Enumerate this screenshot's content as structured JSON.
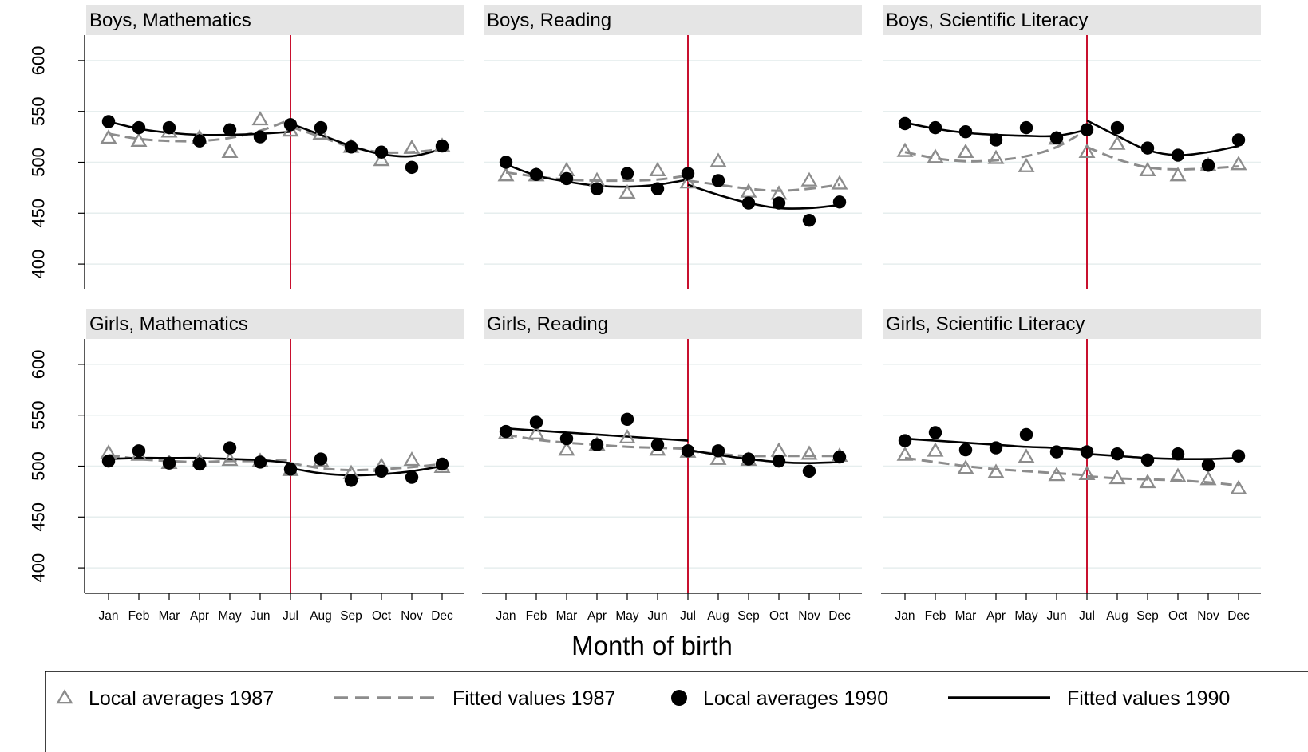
{
  "chart_data": {
    "type": "scatter",
    "xlabel": "Month of birth",
    "months": [
      "Jan",
      "Feb",
      "Mar",
      "Apr",
      "May",
      "Jun",
      "Jul",
      "Aug",
      "Sep",
      "Oct",
      "Nov",
      "Dec"
    ],
    "y_ticks": [
      400,
      450,
      500,
      550,
      600
    ],
    "ylim": [
      375,
      625
    ],
    "cutoff_month": "Jul",
    "grid": true,
    "colors": {
      "s1987": "#8c8c8c",
      "s1990": "#000000",
      "cutoff": "#c8102e",
      "strip": "#e5e5e5",
      "grid": "#e6eeee"
    },
    "legend": {
      "position": "bottom",
      "items": [
        {
          "label": "Local averages 1987",
          "marker": "triangle-icon"
        },
        {
          "label": "Fitted values 1987",
          "marker": "dashed-line"
        },
        {
          "label": "Local averages 1990",
          "marker": "filled-circle-icon"
        },
        {
          "label": "Fitted values 1990",
          "marker": "solid-line"
        }
      ]
    },
    "panels": [
      {
        "title": "Boys, Mathematics",
        "avg_1987": [
          524,
          521,
          530,
          524,
          510,
          542,
          531,
          528,
          515,
          502,
          514,
          516
        ],
        "avg_1990": [
          540,
          534,
          534,
          521,
          532,
          525,
          537,
          534,
          515,
          510,
          495,
          516
        ],
        "fit_1987_pre": [
          528,
          523,
          521,
          521,
          524,
          531,
          542
        ],
        "fit_1987_post": [
          535,
          525,
          515,
          510,
          510,
          513
        ],
        "fit_1990_pre": [
          540,
          533,
          529,
          527,
          527,
          528,
          530
        ],
        "fit_1990_post": [
          538,
          527,
          516,
          508,
          506,
          513
        ]
      },
      {
        "title": "Boys, Reading",
        "avg_1987": [
          487,
          487,
          492,
          482,
          470,
          492,
          480,
          501,
          471,
          469,
          482,
          479
        ],
        "avg_1990": [
          500,
          488,
          484,
          474,
          489,
          474,
          489,
          482,
          460,
          460,
          443,
          461
        ],
        "fit_1987_pre": [
          490,
          486,
          483,
          482,
          482,
          483,
          487
        ],
        "fit_1987_post": [
          482,
          478,
          474,
          472,
          474,
          478
        ],
        "fit_1990_pre": [
          498,
          487,
          481,
          477,
          476,
          478,
          483
        ],
        "fit_1990_post": [
          478,
          468,
          460,
          455,
          455,
          458
        ]
      },
      {
        "title": "Boys, Scientific Literacy",
        "avg_1987": [
          511,
          505,
          510,
          504,
          496,
          523,
          510,
          518,
          492,
          487,
          497,
          498
        ],
        "avg_1990": [
          538,
          534,
          530,
          522,
          534,
          524,
          532,
          534,
          514,
          507,
          497,
          522
        ],
        "fit_1987_pre": [
          510,
          504,
          501,
          502,
          506,
          515,
          532
        ],
        "fit_1987_post": [
          515,
          503,
          495,
          493,
          494,
          496
        ],
        "fit_1990_pre": [
          539,
          533,
          529,
          527,
          526,
          526,
          532
        ],
        "fit_1990_post": [
          541,
          526,
          512,
          507,
          510,
          516
        ]
      },
      {
        "title": "Girls, Mathematics",
        "avg_1987": [
          513,
          511,
          503,
          505,
          506,
          505,
          496,
          505,
          493,
          500,
          506,
          499
        ],
        "avg_1990": [
          505,
          515,
          503,
          502,
          518,
          504,
          497,
          507,
          486,
          495,
          489,
          502
        ],
        "fit_1987_pre": [
          511,
          507,
          505,
          504,
          505,
          505,
          506
        ],
        "fit_1987_post": [
          503,
          498,
          496,
          497,
          499,
          502
        ],
        "fit_1990_pre": [
          507,
          508,
          508,
          508,
          507,
          506,
          503
        ],
        "fit_1990_post": [
          498,
          493,
          491,
          492,
          495,
          500
        ]
      },
      {
        "title": "Girls, Reading",
        "avg_1987": [
          532,
          532,
          516,
          521,
          528,
          516,
          514,
          507,
          506,
          515,
          512,
          510
        ],
        "avg_1990": [
          534,
          543,
          527,
          521,
          546,
          521,
          515,
          515,
          507,
          505,
          495,
          509
        ],
        "fit_1987_pre": [
          531,
          526,
          523,
          521,
          519,
          518,
          517
        ],
        "fit_1987_post": [
          515,
          512,
          510,
          510,
          510,
          510
        ],
        "fit_1990_pre": [
          537,
          535,
          533,
          531,
          529,
          527,
          525
        ],
        "fit_1990_post": [
          516,
          511,
          507,
          504,
          503,
          504
        ]
      },
      {
        "title": "Girls, Scientific Literacy",
        "avg_1987": [
          511,
          515,
          498,
          494,
          509,
          491,
          492,
          488,
          484,
          490,
          487,
          478
        ],
        "avg_1990": [
          525,
          533,
          516,
          518,
          531,
          514,
          514,
          512,
          506,
          512,
          501,
          510
        ],
        "fit_1987_pre": [
          508,
          504,
          500,
          497,
          495,
          493,
          491
        ],
        "fit_1987_post": [
          490,
          488,
          487,
          486,
          484,
          481
        ],
        "fit_1990_pre": [
          527,
          525,
          523,
          521,
          519,
          518,
          516
        ],
        "fit_1990_post": [
          512,
          510,
          508,
          507,
          507,
          508
        ]
      }
    ]
  }
}
